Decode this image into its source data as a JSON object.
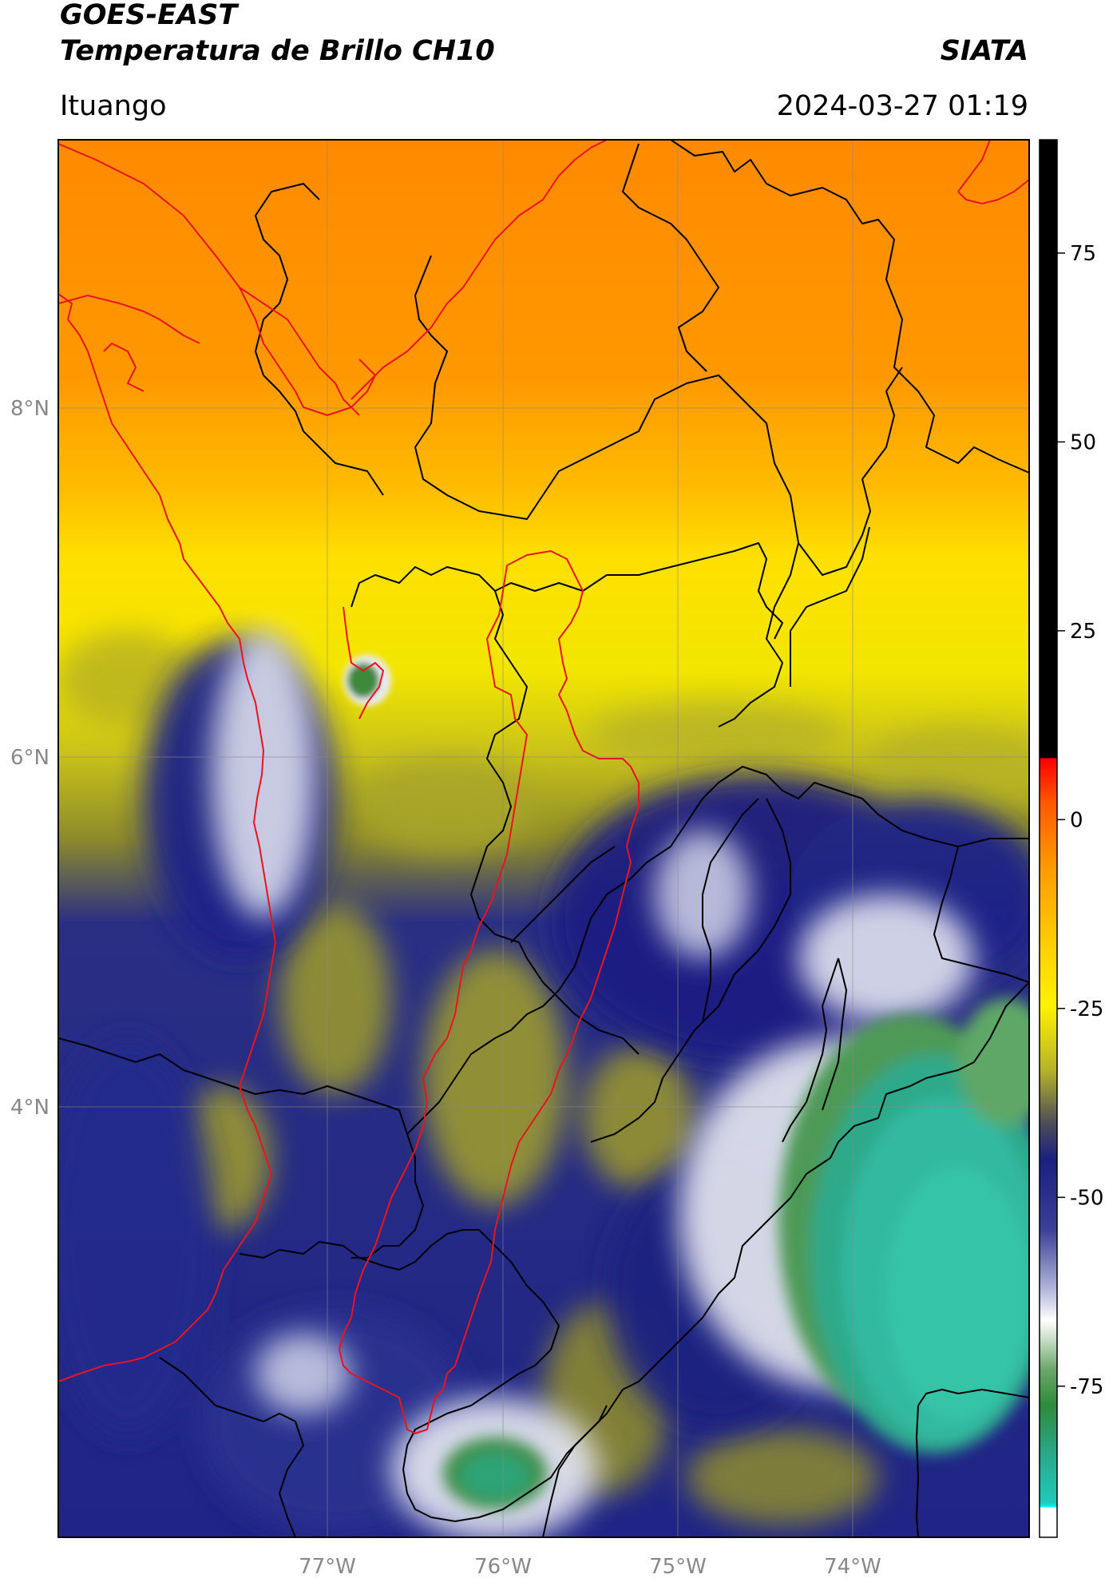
{
  "header": {
    "title_line1": "GOES-EAST",
    "title_line2": "Temperatura de Brillo CH10",
    "organization": "SIATA",
    "region": "Ituango",
    "datetime": "2024-03-27 01:19"
  },
  "map": {
    "lat_labels": [
      "8°N",
      "6°N",
      "4°N"
    ],
    "lon_labels": [
      "77°W",
      "76°W",
      "75°W",
      "74°W"
    ],
    "extent": {
      "lon_min": -78.55,
      "lon_max": -73.0,
      "lat_min": 2.55,
      "lat_max": 9.55
    },
    "lat_ticks": [
      8,
      6,
      4
    ],
    "lon_ticks": [
      -77,
      -76,
      -75,
      -74
    ]
  },
  "colorbar": {
    "tick_labels": [
      "75",
      "50",
      "25",
      "0",
      "-25",
      "-50",
      "-75"
    ],
    "tick_values": [
      75,
      50,
      25,
      0,
      -25,
      -50,
      -75
    ],
    "range": [
      -95,
      90
    ]
  },
  "colors": {
    "warm_orange": "#ff8c00",
    "yellow": "#ffe600",
    "olive": "#b9b520",
    "navy": "#1b1f80",
    "pale": "#e8eaf4",
    "green": "#3e8a3e",
    "teal": "#2fb99a",
    "cyan": "#00e5e5",
    "red_boundary": "#e8141e",
    "black_boundary": "#000000"
  }
}
